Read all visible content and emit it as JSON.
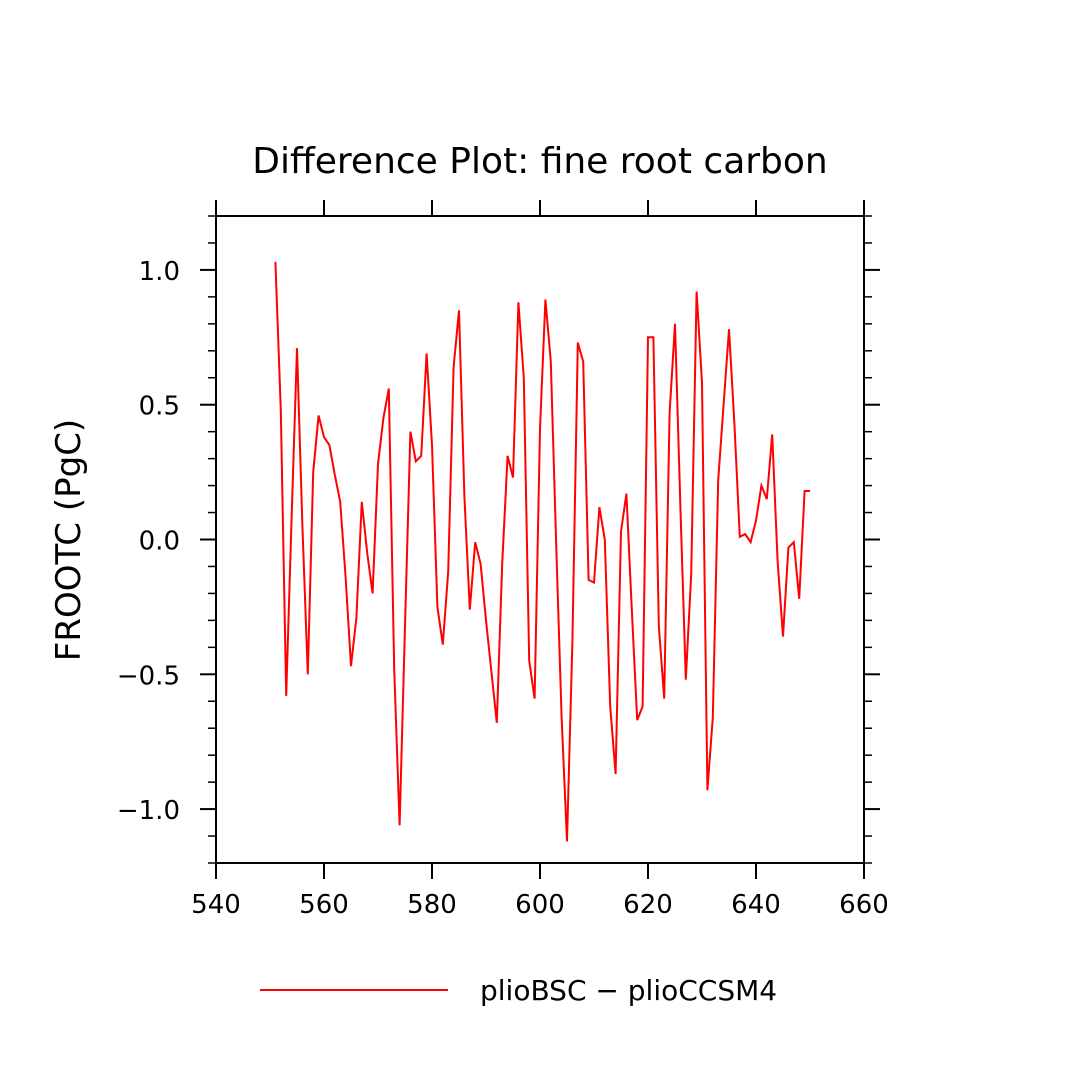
{
  "chart_data": {
    "type": "line",
    "title": "Difference Plot: fine root carbon",
    "xlabel": "",
    "ylabel": "FROOTC  (PgC)",
    "xlim": [
      540,
      660
    ],
    "ylim": [
      -1.2,
      1.2
    ],
    "xticks": [
      540,
      560,
      580,
      600,
      620,
      640,
      660
    ],
    "xtick_labels": [
      "540",
      "560",
      "580",
      "600",
      "620",
      "640",
      "660"
    ],
    "yticks": [
      -1.0,
      -0.5,
      0.0,
      0.5,
      1.0
    ],
    "ytick_labels": [
      "−1.0",
      "−0.5",
      "0.0",
      "0.5",
      "1.0"
    ],
    "grid": false,
    "legend_position": "bottom",
    "line_color": "#ff0000",
    "series": [
      {
        "name": "plioBSC − plioCCSM4",
        "x": [
          551,
          552,
          553,
          554,
          555,
          556,
          557,
          558,
          559,
          560,
          561,
          562,
          563,
          564,
          565,
          566,
          567,
          568,
          569,
          570,
          571,
          572,
          573,
          574,
          575,
          576,
          577,
          578,
          579,
          580,
          581,
          582,
          583,
          584,
          585,
          586,
          587,
          588,
          589,
          590,
          591,
          592,
          593,
          594,
          595,
          596,
          597,
          598,
          599,
          600,
          601,
          602,
          603,
          604,
          605,
          606,
          607,
          608,
          609,
          610,
          611,
          612,
          613,
          614,
          615,
          616,
          617,
          618,
          619,
          620,
          621,
          622,
          623,
          624,
          625,
          626,
          627,
          628,
          629,
          630,
          631,
          632,
          633,
          634,
          635,
          636,
          637,
          638,
          639,
          640,
          641,
          642,
          643,
          644,
          645,
          646,
          647,
          648,
          649,
          650
        ],
        "y": [
          1.03,
          0.48,
          -0.58,
          0.08,
          0.71,
          0.05,
          -0.5,
          0.25,
          0.46,
          0.38,
          0.35,
          0.24,
          0.14,
          -0.14,
          -0.47,
          -0.29,
          0.14,
          -0.05,
          -0.2,
          0.28,
          0.45,
          0.56,
          -0.48,
          -1.06,
          -0.32,
          0.4,
          0.29,
          0.31,
          0.69,
          0.35,
          -0.25,
          -0.39,
          -0.12,
          0.64,
          0.85,
          0.16,
          -0.26,
          -0.01,
          -0.09,
          -0.3,
          -0.49,
          -0.68,
          -0.09,
          0.31,
          0.23,
          0.88,
          0.6,
          -0.45,
          -0.59,
          0.41,
          0.89,
          0.66,
          -0.02,
          -0.66,
          -1.12,
          -0.38,
          0.73,
          0.66,
          -0.15,
          -0.16,
          0.12,
          0.0,
          -0.62,
          -0.87,
          0.03,
          0.17,
          -0.26,
          -0.67,
          -0.62,
          0.75,
          0.75,
          -0.32,
          -0.59,
          0.47,
          0.8,
          0.12,
          -0.52,
          -0.13,
          0.92,
          0.58,
          -0.93,
          -0.66,
          0.22,
          0.5,
          0.78,
          0.43,
          0.01,
          0.02,
          -0.01,
          0.07,
          0.2,
          0.15,
          0.39,
          -0.08,
          -0.36,
          -0.03,
          -0.01,
          -0.22,
          0.18,
          0.18
        ]
      }
    ]
  }
}
